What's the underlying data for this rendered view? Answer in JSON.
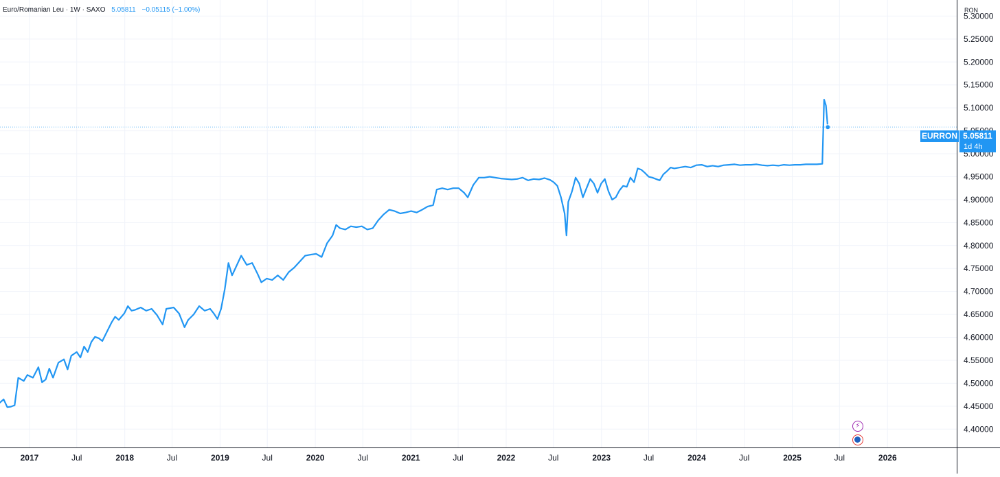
{
  "header": {
    "symbol_line": "Euro/Romanian Leu · 1W · SAXO",
    "price": "5.05811",
    "change": "−0.05115 (−1.00%)"
  },
  "currency": "RON",
  "price_tag": {
    "symbol": "EURRON",
    "price": "5.05811",
    "countdown": "1d 4h"
  },
  "icons": {
    "dividend": "lightning-icon",
    "earnings": "globe-flag-icon"
  },
  "colors": {
    "line": "#2196f3",
    "grid": "#f0f3fa",
    "text": "#131722"
  },
  "chart_data": {
    "type": "line",
    "title": "Euro/Romanian Leu",
    "xlabel": "",
    "ylabel": "",
    "ylim": [
      4.36,
      5.335
    ],
    "xlim": [
      "2016-09-10",
      "2026-09-23"
    ],
    "grid": true,
    "y_ticks": [
      "4.40000",
      "4.45000",
      "4.50000",
      "4.55000",
      "4.60000",
      "4.65000",
      "4.70000",
      "4.75000",
      "4.80000",
      "4.85000",
      "4.90000",
      "4.95000",
      "5.00000",
      "5.05000",
      "5.10000",
      "5.15000",
      "5.20000",
      "5.25000",
      "5.30000"
    ],
    "x_ticks": [
      {
        "label": "2017",
        "date": "2017-01-01"
      },
      {
        "label": "Jul",
        "date": "2017-07-01"
      },
      {
        "label": "2018",
        "date": "2018-01-01"
      },
      {
        "label": "Jul",
        "date": "2018-07-01"
      },
      {
        "label": "2019",
        "date": "2019-01-01"
      },
      {
        "label": "Jul",
        "date": "2019-07-01"
      },
      {
        "label": "2020",
        "date": "2020-01-01"
      },
      {
        "label": "Jul",
        "date": "2020-07-01"
      },
      {
        "label": "2021",
        "date": "2021-01-01"
      },
      {
        "label": "Jul",
        "date": "2021-07-01"
      },
      {
        "label": "2022",
        "date": "2022-01-01"
      },
      {
        "label": "Jul",
        "date": "2022-07-01"
      },
      {
        "label": "2023",
        "date": "2023-01-01"
      },
      {
        "label": "Jul",
        "date": "2023-07-01"
      },
      {
        "label": "2024",
        "date": "2024-01-01"
      },
      {
        "label": "Jul",
        "date": "2024-07-01"
      },
      {
        "label": "2025",
        "date": "2025-01-01"
      },
      {
        "label": "Jul",
        "date": "2025-07-01"
      },
      {
        "label": "2026",
        "date": "2026-01-01"
      }
    ],
    "last_value": 5.05811,
    "series": [
      {
        "name": "",
        "points": [
          [
            "2016-09-10",
            4.458
          ],
          [
            "2016-09-24",
            4.465
          ],
          [
            "2016-10-08",
            4.448
          ],
          [
            "2016-10-22",
            4.449
          ],
          [
            "2016-11-05",
            4.452
          ],
          [
            "2016-11-19",
            4.512
          ],
          [
            "2016-12-10",
            4.505
          ],
          [
            "2016-12-24",
            4.518
          ],
          [
            "2017-01-14",
            4.512
          ],
          [
            "2017-02-04",
            4.535
          ],
          [
            "2017-02-18",
            4.502
          ],
          [
            "2017-03-04",
            4.508
          ],
          [
            "2017-03-18",
            4.532
          ],
          [
            "2017-04-01",
            4.512
          ],
          [
            "2017-04-22",
            4.545
          ],
          [
            "2017-05-13",
            4.552
          ],
          [
            "2017-05-27",
            4.53
          ],
          [
            "2017-06-10",
            4.56
          ],
          [
            "2017-07-01",
            4.568
          ],
          [
            "2017-07-15",
            4.556
          ],
          [
            "2017-07-29",
            4.58
          ],
          [
            "2017-08-12",
            4.568
          ],
          [
            "2017-08-26",
            4.59
          ],
          [
            "2017-09-09",
            4.601
          ],
          [
            "2017-09-23",
            4.598
          ],
          [
            "2017-10-07",
            4.592
          ],
          [
            "2017-10-28",
            4.616
          ],
          [
            "2017-11-11",
            4.632
          ],
          [
            "2017-11-25",
            4.645
          ],
          [
            "2017-12-09",
            4.638
          ],
          [
            "2017-12-30",
            4.652
          ],
          [
            "2018-01-13",
            4.668
          ],
          [
            "2018-01-27",
            4.658
          ],
          [
            "2018-02-10",
            4.66
          ],
          [
            "2018-03-03",
            4.665
          ],
          [
            "2018-03-24",
            4.658
          ],
          [
            "2018-04-14",
            4.662
          ],
          [
            "2018-05-05",
            4.648
          ],
          [
            "2018-05-26",
            4.628
          ],
          [
            "2018-06-09",
            4.662
          ],
          [
            "2018-07-07",
            4.665
          ],
          [
            "2018-07-28",
            4.652
          ],
          [
            "2018-08-18",
            4.622
          ],
          [
            "2018-09-01",
            4.638
          ],
          [
            "2018-09-22",
            4.65
          ],
          [
            "2018-10-13",
            4.668
          ],
          [
            "2018-11-03",
            4.658
          ],
          [
            "2018-11-24",
            4.662
          ],
          [
            "2018-12-08",
            4.652
          ],
          [
            "2018-12-22",
            4.64
          ],
          [
            "2019-01-05",
            4.662
          ],
          [
            "2019-01-19",
            4.705
          ],
          [
            "2019-02-02",
            4.762
          ],
          [
            "2019-02-16",
            4.735
          ],
          [
            "2019-03-02",
            4.752
          ],
          [
            "2019-03-23",
            4.778
          ],
          [
            "2019-04-13",
            4.758
          ],
          [
            "2019-05-04",
            4.762
          ],
          [
            "2019-05-25",
            4.738
          ],
          [
            "2019-06-08",
            4.72
          ],
          [
            "2019-06-29",
            4.728
          ],
          [
            "2019-07-20",
            4.725
          ],
          [
            "2019-08-10",
            4.735
          ],
          [
            "2019-08-31",
            4.725
          ],
          [
            "2019-09-21",
            4.742
          ],
          [
            "2019-10-12",
            4.752
          ],
          [
            "2019-11-02",
            4.765
          ],
          [
            "2019-11-23",
            4.778
          ],
          [
            "2019-12-14",
            4.78
          ],
          [
            "2020-01-04",
            4.782
          ],
          [
            "2020-01-25",
            4.775
          ],
          [
            "2020-02-15",
            4.805
          ],
          [
            "2020-03-07",
            4.822
          ],
          [
            "2020-03-21",
            4.845
          ],
          [
            "2020-04-04",
            4.838
          ],
          [
            "2020-04-25",
            4.835
          ],
          [
            "2020-05-16",
            4.842
          ],
          [
            "2020-06-06",
            4.84
          ],
          [
            "2020-06-27",
            4.842
          ],
          [
            "2020-07-18",
            4.835
          ],
          [
            "2020-08-08",
            4.838
          ],
          [
            "2020-08-29",
            4.855
          ],
          [
            "2020-09-19",
            4.868
          ],
          [
            "2020-10-10",
            4.878
          ],
          [
            "2020-10-31",
            4.875
          ],
          [
            "2020-11-21",
            4.87
          ],
          [
            "2020-12-12",
            4.872
          ],
          [
            "2021-01-02",
            4.875
          ],
          [
            "2021-01-23",
            4.872
          ],
          [
            "2021-02-13",
            4.878
          ],
          [
            "2021-03-06",
            4.885
          ],
          [
            "2021-03-27",
            4.888
          ],
          [
            "2021-04-10",
            4.922
          ],
          [
            "2021-05-01",
            4.925
          ],
          [
            "2021-05-22",
            4.922
          ],
          [
            "2021-06-12",
            4.925
          ],
          [
            "2021-07-03",
            4.925
          ],
          [
            "2021-07-24",
            4.915
          ],
          [
            "2021-08-07",
            4.905
          ],
          [
            "2021-08-28",
            4.932
          ],
          [
            "2021-09-18",
            4.948
          ],
          [
            "2021-10-09",
            4.948
          ],
          [
            "2021-10-30",
            4.95
          ],
          [
            "2021-11-20",
            4.948
          ],
          [
            "2021-12-11",
            4.946
          ],
          [
            "2022-01-01",
            4.945
          ],
          [
            "2022-01-22",
            4.944
          ],
          [
            "2022-02-12",
            4.945
          ],
          [
            "2022-03-05",
            4.948
          ],
          [
            "2022-03-26",
            4.942
          ],
          [
            "2022-04-16",
            4.945
          ],
          [
            "2022-05-07",
            4.944
          ],
          [
            "2022-05-28",
            4.947
          ],
          [
            "2022-06-18",
            4.943
          ],
          [
            "2022-07-02",
            4.938
          ],
          [
            "2022-07-16",
            4.93
          ],
          [
            "2022-07-30",
            4.905
          ],
          [
            "2022-08-13",
            4.87
          ],
          [
            "2022-08-20",
            4.822
          ],
          [
            "2022-08-27",
            4.895
          ],
          [
            "2022-09-10",
            4.918
          ],
          [
            "2022-09-24",
            4.948
          ],
          [
            "2022-10-08",
            4.935
          ],
          [
            "2022-10-22",
            4.905
          ],
          [
            "2022-11-05",
            4.925
          ],
          [
            "2022-11-19",
            4.945
          ],
          [
            "2022-12-03",
            4.935
          ],
          [
            "2022-12-17",
            4.915
          ],
          [
            "2022-12-31",
            4.935
          ],
          [
            "2023-01-14",
            4.945
          ],
          [
            "2023-01-28",
            4.918
          ],
          [
            "2023-02-11",
            4.9
          ],
          [
            "2023-02-25",
            4.905
          ],
          [
            "2023-03-11",
            4.92
          ],
          [
            "2023-03-25",
            4.93
          ],
          [
            "2023-04-08",
            4.928
          ],
          [
            "2023-04-22",
            4.948
          ],
          [
            "2023-05-06",
            4.938
          ],
          [
            "2023-05-20",
            4.968
          ],
          [
            "2023-06-03",
            4.965
          ],
          [
            "2023-06-17",
            4.958
          ],
          [
            "2023-07-01",
            4.95
          ],
          [
            "2023-07-15",
            4.948
          ],
          [
            "2023-07-29",
            4.945
          ],
          [
            "2023-08-12",
            4.942
          ],
          [
            "2023-08-26",
            4.955
          ],
          [
            "2023-09-09",
            4.962
          ],
          [
            "2023-09-23",
            4.97
          ],
          [
            "2023-10-07",
            4.968
          ],
          [
            "2023-10-28",
            4.97
          ],
          [
            "2023-11-18",
            4.972
          ],
          [
            "2023-12-09",
            4.97
          ],
          [
            "2023-12-30",
            4.975
          ],
          [
            "2024-01-20",
            4.976
          ],
          [
            "2024-02-10",
            4.972
          ],
          [
            "2024-03-02",
            4.974
          ],
          [
            "2024-03-23",
            4.972
          ],
          [
            "2024-04-13",
            4.975
          ],
          [
            "2024-05-04",
            4.976
          ],
          [
            "2024-05-25",
            4.977
          ],
          [
            "2024-06-15",
            4.975
          ],
          [
            "2024-07-06",
            4.976
          ],
          [
            "2024-07-27",
            4.976
          ],
          [
            "2024-08-17",
            4.977
          ],
          [
            "2024-09-07",
            4.975
          ],
          [
            "2024-09-28",
            4.974
          ],
          [
            "2024-10-19",
            4.975
          ],
          [
            "2024-11-09",
            4.974
          ],
          [
            "2024-11-30",
            4.976
          ],
          [
            "2024-12-21",
            4.975
          ],
          [
            "2025-01-11",
            4.976
          ],
          [
            "2025-02-01",
            4.976
          ],
          [
            "2025-02-22",
            4.977
          ],
          [
            "2025-03-15",
            4.977
          ],
          [
            "2025-04-05",
            4.977
          ],
          [
            "2025-04-26",
            4.978
          ],
          [
            "2025-05-03",
            5.118
          ],
          [
            "2025-05-10",
            5.105
          ],
          [
            "2025-05-17",
            5.058
          ]
        ]
      }
    ]
  }
}
